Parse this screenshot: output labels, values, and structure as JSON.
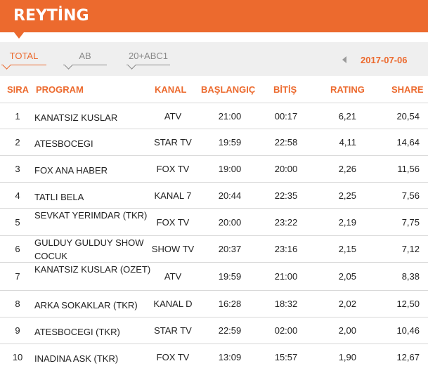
{
  "header": {
    "title": "REYTİNG"
  },
  "tabs": [
    {
      "label": "TOTAL",
      "active": true
    },
    {
      "label": "AB",
      "active": false
    },
    {
      "label": "20+ABC1",
      "active": false
    }
  ],
  "date": {
    "value": "2017-07-06",
    "prev_icon": "triangle-left-icon"
  },
  "columns": {
    "sira": "SIRA",
    "program": "PROGRAM",
    "kanal": "KANAL",
    "baslangic": "BAŞLANGIÇ",
    "bitis": "BİTİŞ",
    "rating": "RATING",
    "share": "SHARE"
  },
  "rows": [
    {
      "sira": "1",
      "program": "KANATSIZ KUSLAR",
      "kanal": "ATV",
      "baslangic": "21:00",
      "bitis": "00:17",
      "rating": "6,21",
      "share": "20,54"
    },
    {
      "sira": "2",
      "program": "ATESBOCEGI",
      "kanal": "STAR TV",
      "baslangic": "19:59",
      "bitis": "22:58",
      "rating": "4,11",
      "share": "14,64"
    },
    {
      "sira": "3",
      "program": "FOX ANA HABER",
      "kanal": "FOX TV",
      "baslangic": "19:00",
      "bitis": "20:00",
      "rating": "2,26",
      "share": "11,56"
    },
    {
      "sira": "4",
      "program": "TATLI BELA",
      "kanal": "KANAL 7",
      "baslangic": "20:44",
      "bitis": "22:35",
      "rating": "2,25",
      "share": "7,56"
    },
    {
      "sira": "5",
      "program": "SEVKAT YERIMDAR (TKR)",
      "kanal": "FOX TV",
      "baslangic": "20:00",
      "bitis": "23:22",
      "rating": "2,19",
      "share": "7,75"
    },
    {
      "sira": "6",
      "program": "GULDUY GULDUY SHOW COCUK",
      "kanal": "SHOW TV",
      "baslangic": "20:37",
      "bitis": "23:16",
      "rating": "2,15",
      "share": "7,12"
    },
    {
      "sira": "7",
      "program": "KANATSIZ KUSLAR (OZET)",
      "kanal": "ATV",
      "baslangic": "19:59",
      "bitis": "21:00",
      "rating": "2,05",
      "share": "8,38"
    },
    {
      "sira": "8",
      "program": "ARKA SOKAKLAR (TKR)",
      "kanal": "KANAL D",
      "baslangic": "16:28",
      "bitis": "18:32",
      "rating": "2,02",
      "share": "12,50"
    },
    {
      "sira": "9",
      "program": "ATESBOCEGI (TKR)",
      "kanal": "STAR TV",
      "baslangic": "22:59",
      "bitis": "02:00",
      "rating": "2,00",
      "share": "10,46"
    },
    {
      "sira": "10",
      "program": "INADINA ASK (TKR)",
      "kanal": "FOX TV",
      "baslangic": "13:09",
      "bitis": "15:57",
      "rating": "1,90",
      "share": "12,67"
    }
  ]
}
